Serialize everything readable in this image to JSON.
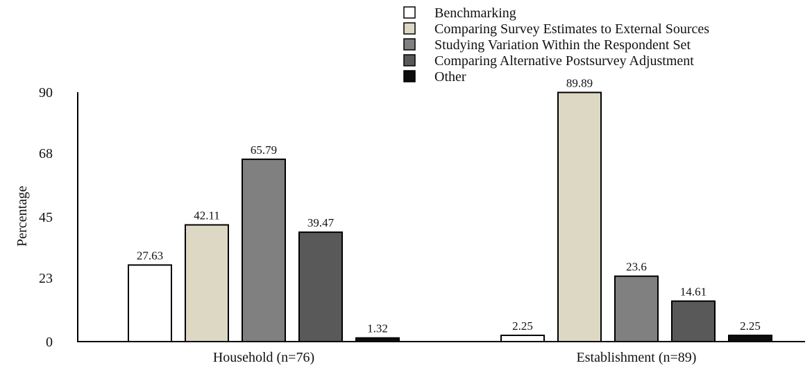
{
  "chart_data": {
    "type": "bar",
    "title": "",
    "xlabel": "",
    "ylabel": "Percentage",
    "ylim": [
      0,
      90
    ],
    "yticks": [
      0,
      23,
      45,
      68,
      90
    ],
    "ytick_labels": [
      "0",
      "23",
      "45",
      "68",
      "90"
    ],
    "categories": [
      "Household (n=76)",
      "Establishment (n=89)"
    ],
    "grid": false,
    "legend_position": "top-right",
    "series": [
      {
        "name": "Benchmarking",
        "color": "#ffffff",
        "values": [
          27.63,
          2.25
        ],
        "labels": [
          "27.63",
          "2.25"
        ]
      },
      {
        "name": "Comparing Survey Estimates to External Sources",
        "color": "#ddd8c4",
        "values": [
          42.11,
          89.89
        ],
        "labels": [
          "42.11",
          "89.89"
        ]
      },
      {
        "name": "Studying Variation Within the Respondent Set",
        "color": "#808080",
        "values": [
          65.79,
          23.6
        ],
        "labels": [
          "65.79",
          "23.6"
        ]
      },
      {
        "name": "Comparing Alternative Postsurvey Adjustment",
        "color": "#595959",
        "values": [
          39.47,
          14.61
        ],
        "labels": [
          "39.47",
          "14.61"
        ]
      },
      {
        "name": "Other",
        "color": "#0d0d0d",
        "values": [
          1.32,
          2.25
        ],
        "labels": [
          "1.32",
          "2.25"
        ]
      }
    ]
  }
}
